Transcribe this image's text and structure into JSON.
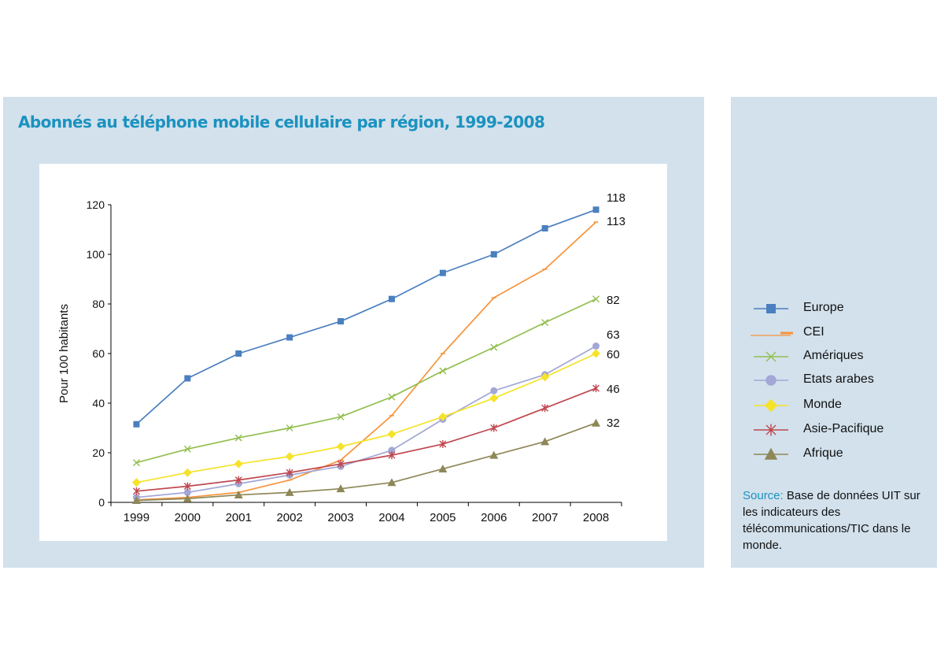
{
  "title": "Abonnés au téléphone mobile  cellulaire par région, 1999-2008",
  "source": {
    "label": "Source:",
    "text": " Base de données UIT sur les indicateurs des télécommunications/TIC dans le monde."
  },
  "chart_data": {
    "type": "line",
    "title": "Abonnés au téléphone mobile  cellulaire par région, 1999-2008",
    "xlabel": "",
    "ylabel": "Pour 100 habitants",
    "ylim": [
      0,
      120
    ],
    "yticks": [
      0,
      20,
      40,
      60,
      80,
      100,
      120
    ],
    "categories": [
      "1999",
      "2000",
      "2001",
      "2002",
      "2003",
      "2004",
      "2005",
      "2006",
      "2007",
      "2008"
    ],
    "legend_position": "right",
    "grid": false,
    "series": [
      {
        "name": "Europe",
        "color": "#4a7fc0",
        "marker": "square",
        "end_label": "118",
        "values": [
          31.5,
          50,
          60,
          66.5,
          73,
          82,
          92.5,
          100,
          110.5,
          118
        ]
      },
      {
        "name": "CEI",
        "color": "#f7943a",
        "marker": "dash",
        "end_label": "113",
        "values": [
          1,
          2,
          4,
          9,
          17,
          35,
          60,
          82.5,
          94,
          113
        ]
      },
      {
        "name": "Amériques",
        "color": "#92bf50",
        "marker": "x",
        "end_label": "82",
        "values": [
          16,
          21.5,
          26,
          30,
          34.5,
          42.5,
          53,
          62.5,
          72.5,
          82
        ]
      },
      {
        "name": "Etats arabes",
        "color": "#a2a7d5",
        "marker": "circle",
        "end_label": "63",
        "values": [
          2,
          4,
          7.5,
          11,
          14.5,
          21,
          33.5,
          45,
          51.5,
          63
        ]
      },
      {
        "name": "Monde",
        "color": "#f5e32a",
        "marker": "diamond",
        "end_label": "60",
        "values": [
          8,
          12,
          15.5,
          18.5,
          22.5,
          27.5,
          34.5,
          42,
          50.5,
          60
        ]
      },
      {
        "name": "Asie-Pacifique",
        "color": "#c0474f",
        "marker": "star",
        "end_label": "46",
        "values": [
          4.5,
          6.5,
          9,
          12,
          15.5,
          19,
          23.5,
          30,
          38,
          46
        ]
      },
      {
        "name": "Afrique",
        "color": "#8e8758",
        "marker": "triangle",
        "end_label": "32",
        "values": [
          0.8,
          1.5,
          3,
          4,
          5.5,
          8,
          13.5,
          19,
          24.5,
          32
        ]
      }
    ]
  }
}
